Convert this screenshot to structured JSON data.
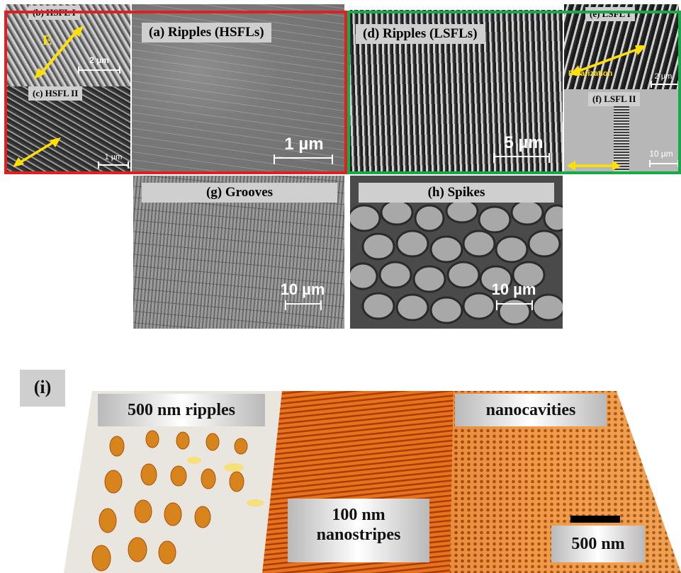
{
  "panels": {
    "a": {
      "label": "(a) Ripples (HSFLs)",
      "scale": "1 µm"
    },
    "b": {
      "label": "(b) HSFL I",
      "scale": "2 µm",
      "field": "E"
    },
    "c": {
      "label": "(c) HSFL II",
      "scale": "1 µm"
    },
    "d": {
      "label": "(d) Ripples (LSFLs)",
      "scale": "5 µm"
    },
    "e": {
      "label": "(e) LSFL I",
      "scale": "2 µm",
      "note": "Polarization"
    },
    "f": {
      "label": "(f) LSFL II",
      "scale": "10 µm"
    },
    "g": {
      "label": "(g) Grooves",
      "scale": "10 µm"
    },
    "h": {
      "label": "(h) Spikes",
      "scale": "10 µm"
    }
  },
  "afm": {
    "label": "(i)",
    "ripples": "500 nm ripples",
    "nanocavities": "nanocavities",
    "nanostripes_line1": "100 nm",
    "nanostripes_line2": "nanostripes",
    "scale": "500 nm"
  },
  "colors": {
    "hsfl_frame": "#e02020",
    "lsfl_frame": "#1aa84a",
    "arrow": "#ffe000"
  }
}
